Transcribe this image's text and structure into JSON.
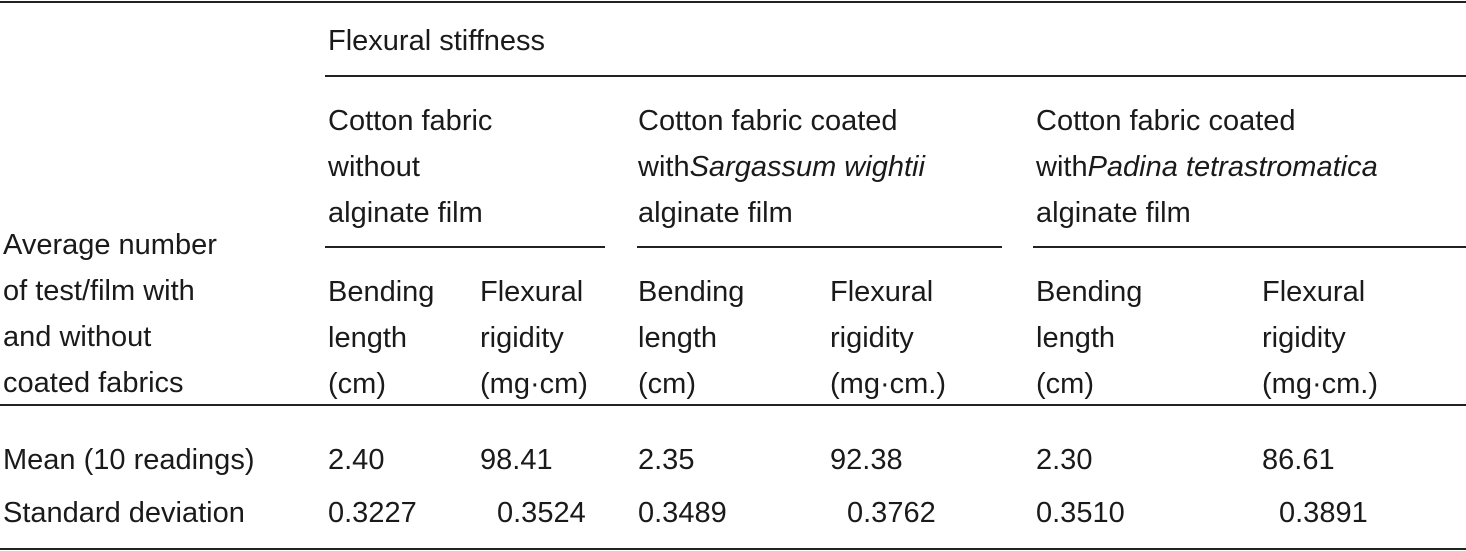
{
  "table": {
    "row_header": [
      "Average number",
      "of test/film with",
      "and without",
      "coated fabrics"
    ],
    "spanner": "Flexural stiffness",
    "groups": [
      {
        "title": [
          [
            {
              "text": "Cotton fabric"
            }
          ],
          [
            {
              "text": "without"
            }
          ],
          [
            {
              "text": "alginate film"
            }
          ]
        ],
        "columns": [
          [
            "Bending",
            "length",
            "(cm)"
          ],
          [
            "Flexural",
            "rigidity",
            "(mg·cm)"
          ]
        ]
      },
      {
        "title": [
          [
            {
              "text": "Cotton fabric coated"
            }
          ],
          [
            {
              "text": "with "
            },
            {
              "text": "Sargassum wightii",
              "italic": true
            }
          ],
          [
            {
              "text": "alginate film"
            }
          ]
        ],
        "columns": [
          [
            "Bending",
            "length",
            "(cm)"
          ],
          [
            "Flexural",
            "rigidity",
            "(mg·cm.)"
          ]
        ]
      },
      {
        "title": [
          [
            {
              "text": "Cotton fabric coated"
            }
          ],
          [
            {
              "text": "with "
            },
            {
              "text": "Padina tetrastromatica",
              "italic": true
            }
          ],
          [
            {
              "text": "alginate film"
            }
          ]
        ],
        "columns": [
          [
            "Bending",
            "length",
            "(cm)"
          ],
          [
            "Flexural",
            "rigidity",
            "(mg·cm.)"
          ]
        ]
      }
    ],
    "rows": [
      {
        "label": "Mean (10 readings)",
        "values": [
          "2.40",
          "98.41",
          "2.35",
          "92.38",
          "2.30",
          "86.61"
        ]
      },
      {
        "label": "Standard deviation",
        "values": [
          "0.3227",
          "0.3524",
          "0.3489",
          "0.3762",
          "0.3510",
          "0.3891"
        ]
      }
    ]
  }
}
